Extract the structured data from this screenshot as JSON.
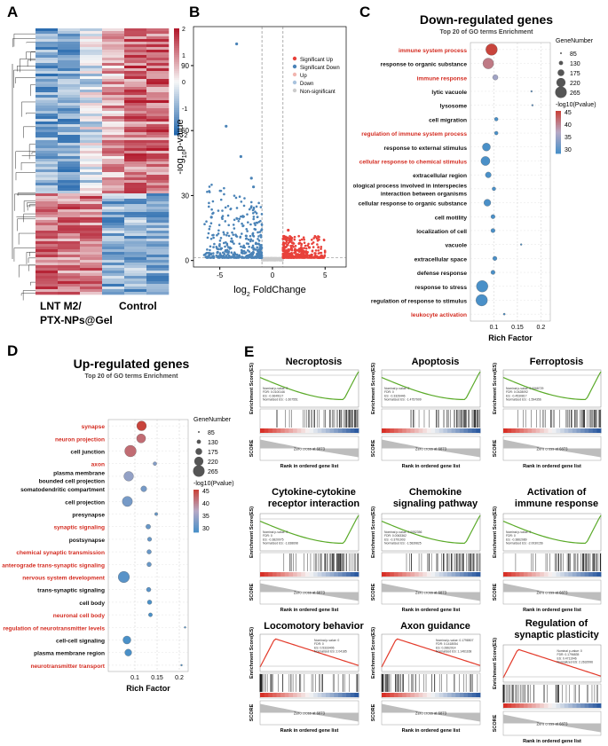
{
  "panels": {
    "A": "A",
    "B": "B",
    "C": "C",
    "D": "D",
    "E": "E"
  },
  "panel_a": {
    "group1_line1": "LNT M2/",
    "group1_line2": "PTX-NPs@Gel",
    "group2": "Control",
    "colorbar_ticks": [
      "2",
      "1",
      "0",
      "-1",
      "-2"
    ],
    "colors": {
      "high": "#b2182b",
      "mid": "#f7f7f7",
      "low": "#2166ac"
    }
  },
  "chart_data": [
    {
      "id": "volcano",
      "type": "scatter",
      "title": "",
      "xlabel_base": "log",
      "xlabel_sub": "2",
      "xlabel_rest": " FoldChange",
      "ylabel_base": "-log",
      "ylabel_sub": "10",
      "ylabel_rest": "p-value",
      "xlim": [
        -7.5,
        7
      ],
      "ylim": [
        -3,
        108
      ],
      "xticks": [
        -5,
        0,
        5
      ],
      "yticks": [
        0,
        30,
        60,
        90
      ],
      "thresholds": {
        "x": [
          -1,
          1
        ],
        "y": 1.3
      },
      "legend": [
        {
          "name": "Significant Up",
          "color": "#e8413a"
        },
        {
          "name": "Significant Down",
          "color": "#4a83b7"
        },
        {
          "name": "Up",
          "color": "#f2b6b0"
        },
        {
          "name": "Down",
          "color": "#a9c3de"
        },
        {
          "name": "Non-significant",
          "color": "#cccccc"
        }
      ],
      "highlight_points": [
        {
          "x": -3.4,
          "y": 100,
          "group": "Significant Down"
        },
        {
          "x": -4.4,
          "y": 62,
          "group": "Significant Down"
        },
        {
          "x": -3.0,
          "y": 48,
          "group": "Significant Down"
        },
        {
          "x": -2.0,
          "y": 38,
          "group": "Significant Down"
        },
        {
          "x": -1.8,
          "y": 34,
          "group": "Significant Down"
        },
        {
          "x": -5.8,
          "y": 20,
          "group": "Significant Down"
        },
        {
          "x": 1.5,
          "y": 14,
          "group": "Significant Up"
        },
        {
          "x": 3.5,
          "y": 6,
          "group": "Significant Up"
        }
      ]
    },
    {
      "id": "go_down",
      "type": "scatter",
      "title": "Down-regulated genes",
      "subtitle": "Top 20 of GO terms Enrichment",
      "xlabel": "Rich Factor",
      "xlim": [
        0.05,
        0.22
      ],
      "xticks": [
        0.1,
        0.15,
        0.2
      ],
      "size_legend_title": "GeneNumber",
      "size_legend": [
        85,
        130,
        175,
        220,
        265
      ],
      "color_legend_title": "-log10(Pvalue)",
      "color_legend_ticks": [
        45,
        40,
        35,
        30
      ],
      "terms": [
        {
          "term": "immune system process",
          "rich": 0.095,
          "count": 265,
          "p": 45,
          "highlight": true
        },
        {
          "term": "response to organic substance",
          "rich": 0.088,
          "count": 250,
          "p": 41,
          "highlight": false
        },
        {
          "term": "immune response",
          "rich": 0.103,
          "count": 150,
          "p": 36,
          "highlight": true
        },
        {
          "term": "lytic vacuole",
          "rich": 0.18,
          "count": 85,
          "p": 31,
          "highlight": false
        },
        {
          "term": "lysosome",
          "rich": 0.182,
          "count": 85,
          "p": 31,
          "highlight": false
        },
        {
          "term": "cell migration",
          "rich": 0.105,
          "count": 120,
          "p": 30,
          "highlight": false
        },
        {
          "term": "regulation of immune system process",
          "rich": 0.105,
          "count": 120,
          "p": 30,
          "highlight": true
        },
        {
          "term": "response to external stimulus",
          "rich": 0.084,
          "count": 200,
          "p": 30,
          "highlight": false
        },
        {
          "term": "cellular response to chemical stimulus",
          "rich": 0.082,
          "count": 220,
          "p": 30,
          "highlight": true
        },
        {
          "term": "extracellular region",
          "rich": 0.088,
          "count": 160,
          "p": 30,
          "highlight": false
        },
        {
          "term": "ological process involved in interspecies\ninteraction between organisms",
          "rich": 0.1,
          "count": 120,
          "p": 30,
          "highlight": false
        },
        {
          "term": "cellular response to organic substance",
          "rich": 0.086,
          "count": 180,
          "p": 30,
          "highlight": false
        },
        {
          "term": "cell motility",
          "rich": 0.098,
          "count": 130,
          "p": 30,
          "highlight": false
        },
        {
          "term": "localization of cell",
          "rich": 0.098,
          "count": 130,
          "p": 30,
          "highlight": false
        },
        {
          "term": "vacuole",
          "rich": 0.158,
          "count": 85,
          "p": 30,
          "highlight": false
        },
        {
          "term": "extracellular space",
          "rich": 0.102,
          "count": 130,
          "p": 30,
          "highlight": false
        },
        {
          "term": "defense response",
          "rich": 0.098,
          "count": 130,
          "p": 30,
          "highlight": false
        },
        {
          "term": "response to stress",
          "rich": 0.075,
          "count": 265,
          "p": 30,
          "highlight": false
        },
        {
          "term": "regulation of response to stimulus",
          "rich": 0.074,
          "count": 265,
          "p": 30,
          "highlight": false
        },
        {
          "term": "leukocyte activation",
          "rich": 0.122,
          "count": 90,
          "p": 30,
          "highlight": true
        }
      ]
    },
    {
      "id": "go_up",
      "type": "scatter",
      "title": "Up-regulated genes",
      "subtitle": "Top 20 of GO terms Enrichment",
      "xlabel": "Rich Factor",
      "xlim": [
        0.04,
        0.22
      ],
      "xticks": [
        0.1,
        0.15,
        0.2
      ],
      "size_legend_title": "GeneNumber",
      "size_legend": [
        85,
        130,
        175,
        220,
        265
      ],
      "color_legend_title": "-log10(Pvalue)",
      "color_legend_ticks": [
        45,
        40,
        35,
        30
      ],
      "terms": [
        {
          "term": "synapse",
          "rich": 0.115,
          "count": 230,
          "p": 45,
          "highlight": true
        },
        {
          "term": "neuron projection",
          "rich": 0.114,
          "count": 220,
          "p": 42,
          "highlight": true
        },
        {
          "term": "cell junction",
          "rich": 0.09,
          "count": 265,
          "p": 42,
          "highlight": false
        },
        {
          "term": "axon",
          "rich": 0.145,
          "count": 120,
          "p": 34,
          "highlight": true
        },
        {
          "term": "plasma membrane\nbounded cell projection",
          "rich": 0.086,
          "count": 230,
          "p": 35,
          "highlight": false
        },
        {
          "term": "somatodendritic compartment",
          "rich": 0.12,
          "count": 160,
          "p": 33,
          "highlight": false
        },
        {
          "term": "cell projection",
          "rich": 0.083,
          "count": 240,
          "p": 33,
          "highlight": false
        },
        {
          "term": "presynapse",
          "rich": 0.148,
          "count": 110,
          "p": 32,
          "highlight": false
        },
        {
          "term": "synaptic signaling",
          "rich": 0.13,
          "count": 140,
          "p": 32,
          "highlight": true
        },
        {
          "term": "postsynapse",
          "rich": 0.133,
          "count": 130,
          "p": 32,
          "highlight": false
        },
        {
          "term": "chemical synaptic transmission",
          "rich": 0.132,
          "count": 135,
          "p": 32,
          "highlight": true
        },
        {
          "term": "anterograde trans-synaptic signaling",
          "rich": 0.132,
          "count": 135,
          "p": 32,
          "highlight": true
        },
        {
          "term": "nervous system development",
          "rich": 0.075,
          "count": 260,
          "p": 31,
          "highlight": true
        },
        {
          "term": "trans-synaptic signaling",
          "rich": 0.131,
          "count": 135,
          "p": 31,
          "highlight": false
        },
        {
          "term": "cell body",
          "rich": 0.133,
          "count": 135,
          "p": 30,
          "highlight": false
        },
        {
          "term": "neuronal cell body",
          "rich": 0.135,
          "count": 125,
          "p": 30,
          "highlight": true
        },
        {
          "term": "regulation of neurotransmitter levels",
          "rich": 0.213,
          "count": 85,
          "p": 30,
          "highlight": true
        },
        {
          "term": "cell-cell signaling",
          "rich": 0.082,
          "count": 200,
          "p": 30,
          "highlight": false
        },
        {
          "term": "plasma membrane region",
          "rich": 0.085,
          "count": 180,
          "p": 30,
          "highlight": false
        },
        {
          "term": "neurotransmitter transport",
          "rich": 0.205,
          "count": 85,
          "p": 30,
          "highlight": true
        }
      ]
    }
  ],
  "gsea": {
    "ylabel": "Enrichment Score(ES)",
    "xlabel": "Rank in ordered gene list",
    "score_label": "SCORE",
    "zero_cross": "Zero cross at 6873",
    "plots": [
      {
        "title": "Necroptosis",
        "direction": "neg",
        "color": "#5aaa28",
        "stats": [
          "Nominal p-value: 0",
          "FDR: 0.0100146",
          "ES: -0.3649117",
          "Normalized ES: -1.607551"
        ]
      },
      {
        "title": "Apoptosis",
        "direction": "neg",
        "color": "#5aaa28",
        "stats": [
          "Nominal p-value: 0",
          "FDR: 0",
          "ES: -0.3326446",
          "Normalized ES: -1.4757909"
        ]
      },
      {
        "title": "Ferroptosis",
        "direction": "neg",
        "color": "#5aaa28",
        "stats": [
          "Nominal p-value: 0.0068729",
          "FDR: 0.0428092",
          "ES: -0.4530817",
          "Normalized ES: -1.594356"
        ]
      },
      {
        "title": "Cytokine-cytokine\nreceptor interaction",
        "direction": "neg",
        "color": "#5aaa28",
        "stats": [
          "Nominal p-value: 0",
          "FDR: 0",
          "ES: -0.3820075",
          "Normalized ES: -1.838698"
        ]
      },
      {
        "title": "Chemokine\nsignaling pathway",
        "direction": "neg",
        "color": "#5aaa28",
        "stats": [
          "Nominal p-value: 0.0052356",
          "FDR: 0.0063362",
          "ES: -0.3791903",
          "Normalized ES: -1.5839825"
        ]
      },
      {
        "title": "Activation of\nimmune response",
        "direction": "neg",
        "color": "#5aaa28",
        "stats": [
          "Nominal p-value: 0",
          "FDR: 0",
          "ES: -0.3862089",
          "Normalized ES: -2.0030156"
        ]
      },
      {
        "title": "Locomotory behavior",
        "direction": "pos",
        "color": "#e33a2a",
        "stats": [
          "Nominal p-value: 0",
          "FDR: 0",
          "ES: 0.5333406",
          "Normalized ES: 2.04185"
        ]
      },
      {
        "title": "Axon guidance",
        "direction": "pos",
        "color": "#e33a2a",
        "stats": [
          "Nominal p-value: 0.1798507",
          "FDR: 0.1418054",
          "ES: 0.2862014",
          "Normalized ES: 1.1461168"
        ]
      },
      {
        "title": "Regulation of\nsynaptic plasticity",
        "direction": "pos",
        "color": "#e33a2a",
        "stats": [
          "Nominal p-value: 0",
          "FDR: 0.1796835",
          "ES: 0.4711946",
          "Normalized ES: 2.2632996"
        ]
      }
    ]
  }
}
